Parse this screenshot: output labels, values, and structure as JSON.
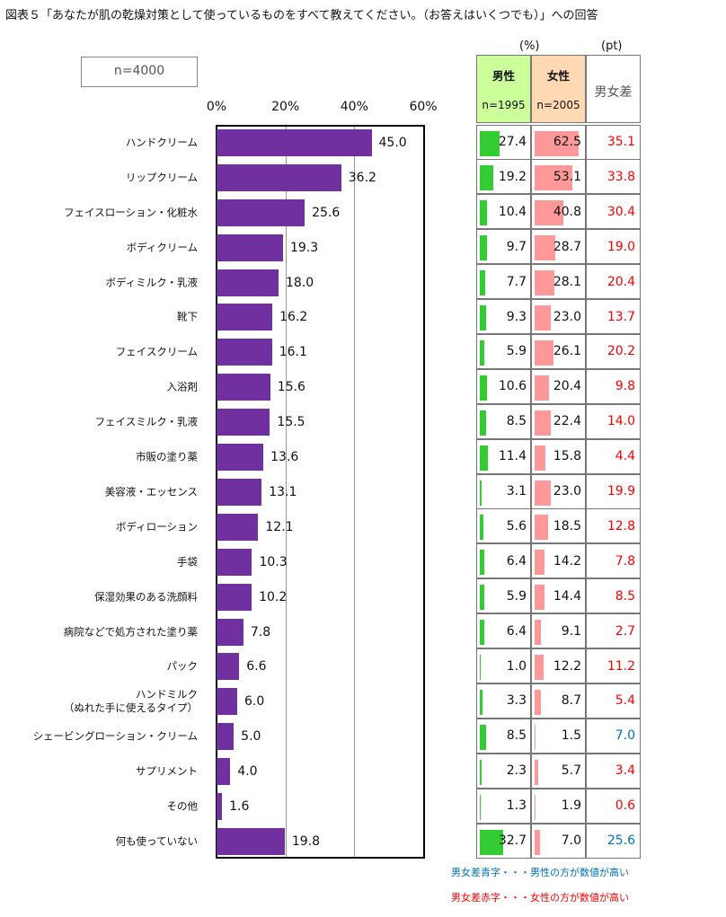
{
  "title": "図表５「あなたが肌の乾燥対策として使っているものをすべて教えてください。（お答えはいくつでも）」への回答",
  "sample": "n=4000",
  "units": {
    "pct": "(%)",
    "pt": "(pt)"
  },
  "table_headers": {
    "male": "男性",
    "male_n": "n=1995",
    "female": "女性",
    "female_n": "n=2005",
    "diff": "男女差"
  },
  "colors": {
    "bar": "#7030a0",
    "male": "#33cc33",
    "female": "#ff9999",
    "red": "#ff0000",
    "blue": "#0070c0"
  },
  "notes": {
    "blue": "男女差青字・・・男性の方が数値が高い",
    "red": "男女差赤字・・・女性の方が数値が高い"
  },
  "chart_data": {
    "type": "bar",
    "orientation": "horizontal",
    "xlim": [
      0,
      60
    ],
    "ticks": [
      "0%",
      "20%",
      "40%",
      "60%"
    ],
    "tick_values": [
      0,
      20,
      40,
      60
    ],
    "categories": [
      "ハンドクリーム",
      "リップクリーム",
      "フェイスローション・化粧水",
      "ボディクリーム",
      "ボディミルク・乳液",
      "靴下",
      "フェイスクリーム",
      "入浴剤",
      "フェイスミルク・乳液",
      "市販の塗り薬",
      "美容液・エッセンス",
      "ボディローション",
      "手袋",
      "保湿効果のある洗顔料",
      "病院などで処方された塗り薬",
      "パック",
      "ハンドミルク\n（ぬれた手に使えるタイプ）",
      "シェービングローション・クリーム",
      "サプリメント",
      "その他",
      "何も使っていない"
    ],
    "values": [
      45.0,
      36.2,
      25.6,
      19.3,
      18.0,
      16.2,
      16.1,
      15.6,
      15.5,
      13.6,
      13.1,
      12.1,
      10.3,
      10.2,
      7.8,
      6.6,
      6.0,
      5.0,
      4.0,
      1.6,
      19.8
    ],
    "male": [
      27.4,
      19.2,
      10.4,
      9.7,
      7.7,
      9.3,
      5.9,
      10.6,
      8.5,
      11.4,
      3.1,
      5.6,
      6.4,
      5.9,
      6.4,
      1.0,
      3.3,
      8.5,
      2.3,
      1.3,
      32.7
    ],
    "female": [
      62.5,
      53.1,
      40.8,
      28.7,
      28.1,
      23.0,
      26.1,
      20.4,
      22.4,
      15.8,
      23.0,
      18.5,
      14.2,
      14.4,
      9.1,
      12.2,
      8.7,
      1.5,
      5.7,
      1.9,
      7.0
    ],
    "diff": [
      35.1,
      33.8,
      30.4,
      19.0,
      20.4,
      13.7,
      20.2,
      9.8,
      14.0,
      4.4,
      19.9,
      12.8,
      7.8,
      8.5,
      2.7,
      11.2,
      5.4,
      7.0,
      3.4,
      0.6,
      25.6
    ],
    "diff_higher": [
      "F",
      "F",
      "F",
      "F",
      "F",
      "F",
      "F",
      "F",
      "F",
      "F",
      "F",
      "F",
      "F",
      "F",
      "F",
      "F",
      "F",
      "M",
      "F",
      "F",
      "M"
    ]
  }
}
